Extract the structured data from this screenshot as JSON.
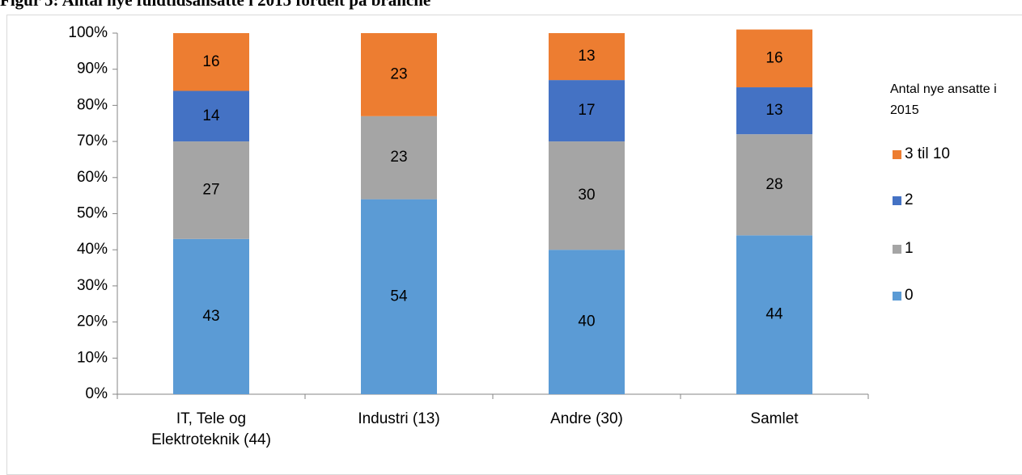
{
  "chart_data": {
    "type": "stacked_bar",
    "title": "Figur 5: Antal nye fuldtidsansatte i 2015 fordelt på branche",
    "categories": [
      "IT, Tele og Elektroteknik (44)",
      "Industri (13)",
      "Andre (30)",
      "Samlet"
    ],
    "series": [
      {
        "name": "0",
        "color": "#5b9bd5",
        "values": [
          43,
          54,
          40,
          44
        ]
      },
      {
        "name": "1",
        "color": "#a5a5a5",
        "values": [
          27,
          23,
          30,
          28
        ]
      },
      {
        "name": "2",
        "color": "#4472c4",
        "values": [
          14,
          null,
          17,
          13
        ]
      },
      {
        "name": "3 til 10",
        "color": "#ed7d31",
        "values": [
          16,
          23,
          13,
          16
        ]
      }
    ],
    "legend_title": "Antal nye ansatte i 2015",
    "legend": "right",
    "ylim": [
      0,
      100
    ],
    "yticks": [
      {
        "value": 0,
        "label": "0%"
      },
      {
        "value": 10,
        "label": "10%"
      },
      {
        "value": 20,
        "label": "20%"
      },
      {
        "value": 30,
        "label": "30%"
      },
      {
        "value": 40,
        "label": "40%"
      },
      {
        "value": 50,
        "label": "50%"
      },
      {
        "value": 60,
        "label": "60%"
      },
      {
        "value": 70,
        "label": "70%"
      },
      {
        "value": 80,
        "label": "80%"
      },
      {
        "value": 90,
        "label": "90%"
      },
      {
        "value": 100,
        "label": "100%"
      }
    ]
  }
}
